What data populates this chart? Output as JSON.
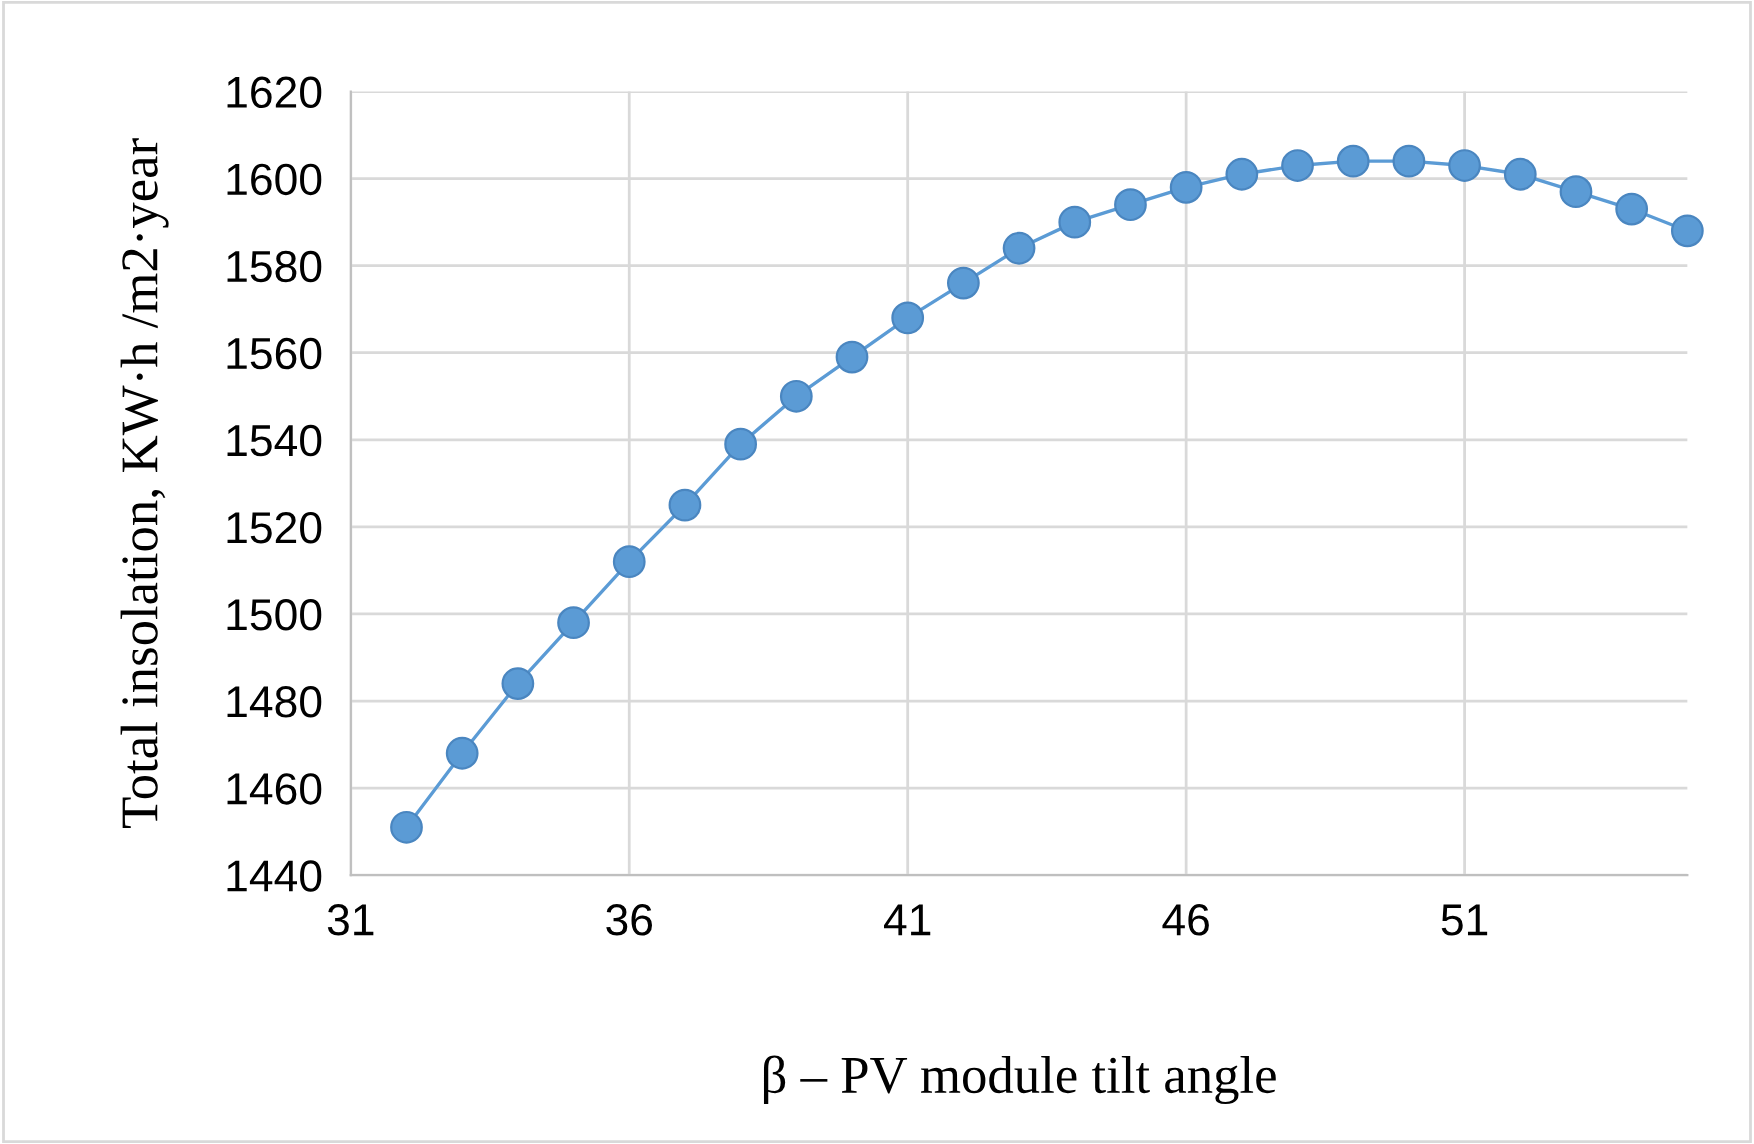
{
  "chart_data": {
    "type": "line",
    "xlabel": "β – PV module tilt angle",
    "ylabel": "Total insolation, KW·h /m2·year",
    "x": [
      32,
      33,
      34,
      35,
      36,
      37,
      38,
      39,
      40,
      41,
      42,
      43,
      44,
      45,
      46,
      47,
      48,
      49,
      50,
      51,
      52,
      53,
      54,
      55
    ],
    "series": [
      {
        "color": "#5b9bd5",
        "values": [
          1451,
          1468,
          1484,
          1498,
          1512,
          1525,
          1539,
          1550,
          1559,
          1568,
          1576,
          1584,
          1590,
          1594,
          1598,
          1601,
          1603,
          1604,
          1604,
          1603,
          1601,
          1597,
          1593,
          1588
        ]
      }
    ],
    "xlim": [
      31,
      55
    ],
    "xticks": [
      31,
      36,
      41,
      46,
      51
    ],
    "ylim": [
      1440,
      1620
    ],
    "yticks": [
      1440,
      1460,
      1480,
      1500,
      1520,
      1540,
      1560,
      1580,
      1600,
      1620
    ],
    "grid": true,
    "marker": "circle",
    "line_style": "solid",
    "legend": false
  }
}
